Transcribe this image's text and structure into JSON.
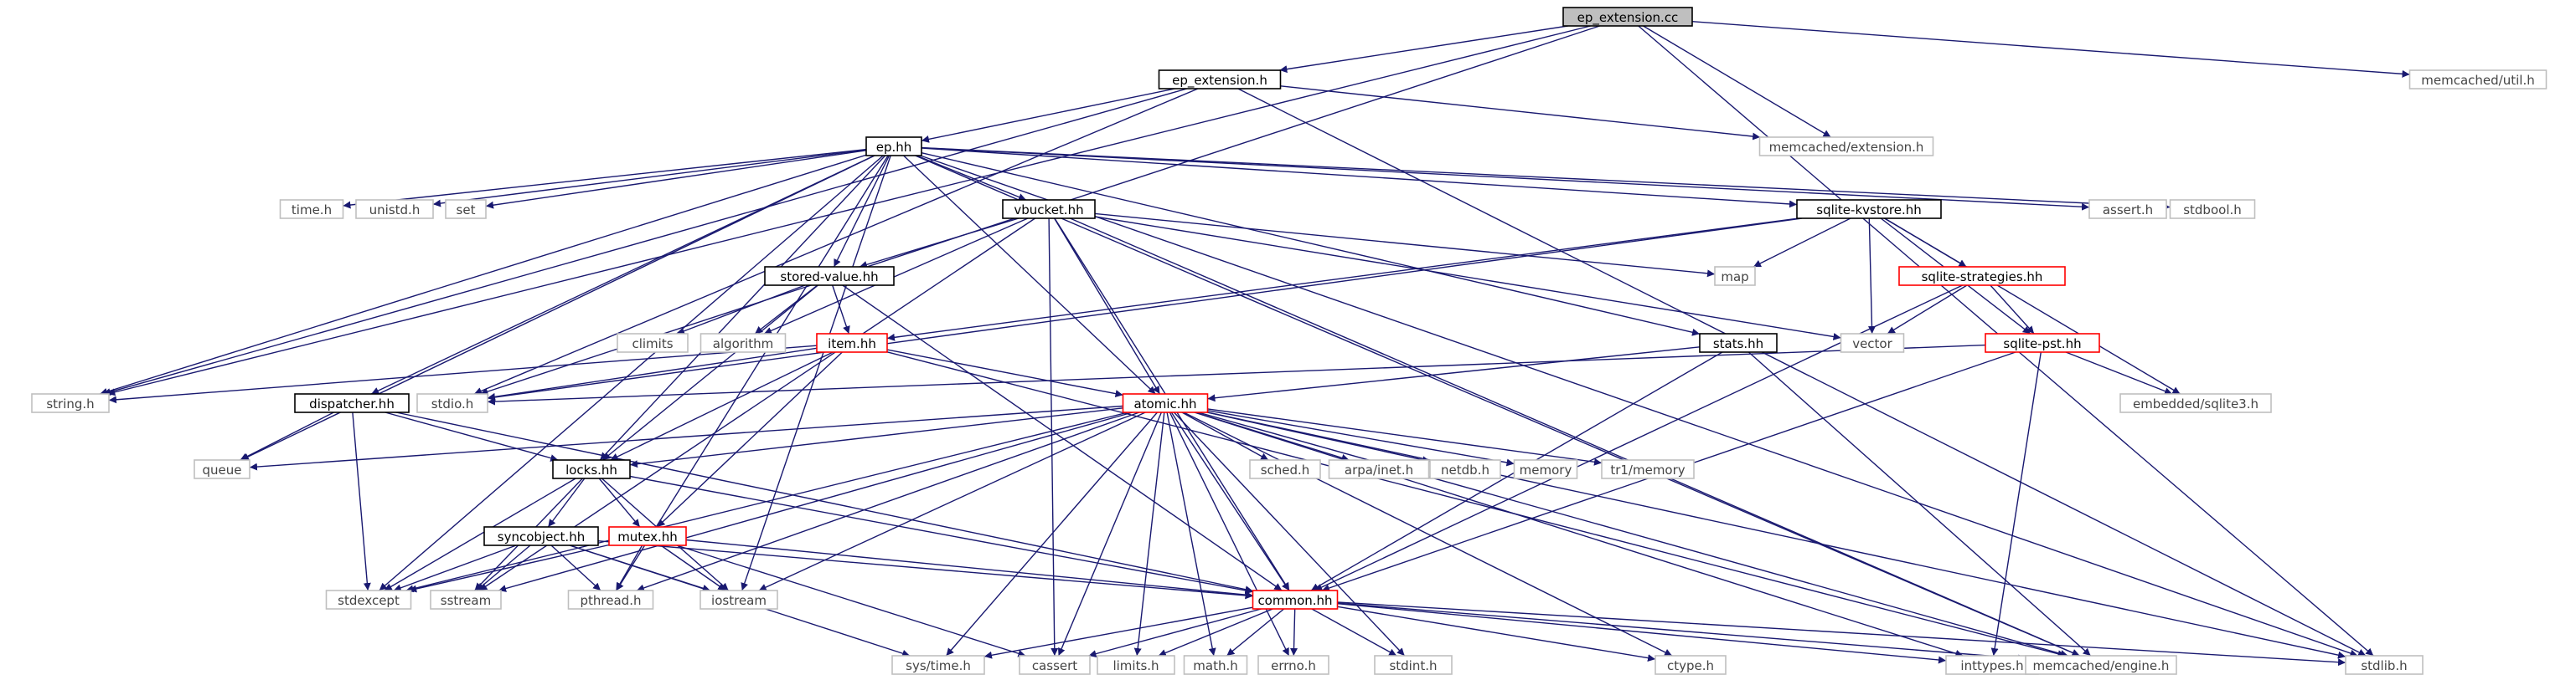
{
  "graph": {
    "title": "ep_extension.cc",
    "colors": {
      "edge": "#191970",
      "root_fill": "#bfbfbf",
      "box_black": "#000000",
      "box_red": "#ff0000",
      "box_grey": "#bfbfbf",
      "text_black": "#000000",
      "text_grey": "#444444"
    },
    "nodes": [
      {
        "id": "ep_extension_cc",
        "label": "ep_extension.cc",
        "style": "root"
      },
      {
        "id": "ep_extension_h",
        "label": "ep_extension.h",
        "style": "black"
      },
      {
        "id": "memcached_util_h",
        "label": "memcached/util.h",
        "style": "grey"
      },
      {
        "id": "memcached_extension_h",
        "label": "memcached/extension.h",
        "style": "grey"
      },
      {
        "id": "ep_hh",
        "label": "ep.hh",
        "style": "black"
      },
      {
        "id": "time_h",
        "label": "time.h",
        "style": "grey"
      },
      {
        "id": "unistd_h",
        "label": "unistd.h",
        "style": "grey"
      },
      {
        "id": "set",
        "label": "set",
        "style": "grey"
      },
      {
        "id": "vbucket_hh",
        "label": "vbucket.hh",
        "style": "black"
      },
      {
        "id": "sqlite_kvstore_hh",
        "label": "sqlite-kvstore.hh",
        "style": "black"
      },
      {
        "id": "assert_h",
        "label": "assert.h",
        "style": "grey"
      },
      {
        "id": "stdbool_h",
        "label": "stdbool.h",
        "style": "grey"
      },
      {
        "id": "stored_value_hh",
        "label": "stored-value.hh",
        "style": "black"
      },
      {
        "id": "map",
        "label": "map",
        "style": "grey"
      },
      {
        "id": "sqlite_strategies_hh",
        "label": "sqlite-strategies.hh",
        "style": "red"
      },
      {
        "id": "climits",
        "label": "climits",
        "style": "grey"
      },
      {
        "id": "algorithm",
        "label": "algorithm",
        "style": "grey"
      },
      {
        "id": "item_hh",
        "label": "item.hh",
        "style": "red"
      },
      {
        "id": "stats_hh",
        "label": "stats.hh",
        "style": "black"
      },
      {
        "id": "vector",
        "label": "vector",
        "style": "grey"
      },
      {
        "id": "sqlite_pst_hh",
        "label": "sqlite-pst.hh",
        "style": "red"
      },
      {
        "id": "string_h",
        "label": "string.h",
        "style": "grey"
      },
      {
        "id": "dispatcher_hh",
        "label": "dispatcher.hh",
        "style": "black"
      },
      {
        "id": "stdio_h",
        "label": "stdio.h",
        "style": "grey"
      },
      {
        "id": "atomic_hh",
        "label": "atomic.hh",
        "style": "red"
      },
      {
        "id": "embedded_sqlite3_h",
        "label": "embedded/sqlite3.h",
        "style": "grey"
      },
      {
        "id": "queue",
        "label": "queue",
        "style": "grey"
      },
      {
        "id": "locks_hh",
        "label": "locks.hh",
        "style": "black"
      },
      {
        "id": "sched_h",
        "label": "sched.h",
        "style": "grey"
      },
      {
        "id": "arpa_inet_h",
        "label": "arpa/inet.h",
        "style": "grey"
      },
      {
        "id": "netdb_h",
        "label": "netdb.h",
        "style": "grey"
      },
      {
        "id": "memory",
        "label": "memory",
        "style": "grey"
      },
      {
        "id": "tr1_memory",
        "label": "tr1/memory",
        "style": "grey"
      },
      {
        "id": "syncobject_hh",
        "label": "syncobject.hh",
        "style": "black"
      },
      {
        "id": "mutex_hh",
        "label": "mutex.hh",
        "style": "red"
      },
      {
        "id": "stdexcept",
        "label": "stdexcept",
        "style": "grey"
      },
      {
        "id": "sstream",
        "label": "sstream",
        "style": "grey"
      },
      {
        "id": "pthread_h",
        "label": "pthread.h",
        "style": "grey"
      },
      {
        "id": "iostream",
        "label": "iostream",
        "style": "grey"
      },
      {
        "id": "common_hh",
        "label": "common.hh",
        "style": "red"
      },
      {
        "id": "sys_time_h",
        "label": "sys/time.h",
        "style": "grey"
      },
      {
        "id": "cassert",
        "label": "cassert",
        "style": "grey"
      },
      {
        "id": "limits_h",
        "label": "limits.h",
        "style": "grey"
      },
      {
        "id": "math_h",
        "label": "math.h",
        "style": "grey"
      },
      {
        "id": "errno_h",
        "label": "errno.h",
        "style": "grey"
      },
      {
        "id": "stdint_h",
        "label": "stdint.h",
        "style": "grey"
      },
      {
        "id": "ctype_h",
        "label": "ctype.h",
        "style": "grey"
      },
      {
        "id": "inttypes_h",
        "label": "inttypes.h",
        "style": "grey"
      },
      {
        "id": "memcached_engine_h",
        "label": "memcached/engine.h",
        "style": "grey"
      },
      {
        "id": "stdlib_h",
        "label": "stdlib.h",
        "style": "grey"
      }
    ],
    "edges": [
      [
        "ep_extension_cc",
        "ep_extension_h"
      ],
      [
        "ep_extension_cc",
        "memcached_util_h"
      ],
      [
        "ep_extension_cc",
        "memcached_extension_h"
      ],
      [
        "ep_extension_cc",
        "string_h"
      ],
      [
        "ep_extension_cc",
        "stdio_h"
      ],
      [
        "ep_extension_cc",
        "stdlib_h"
      ],
      [
        "ep_extension_h",
        "ep_hh"
      ],
      [
        "ep_extension_h",
        "memcached_extension_h"
      ],
      [
        "ep_extension_h",
        "string_h"
      ],
      [
        "ep_extension_h",
        "stdio_h"
      ],
      [
        "ep_extension_h",
        "stdlib_h"
      ],
      [
        "ep_hh",
        "time_h"
      ],
      [
        "ep_hh",
        "unistd_h"
      ],
      [
        "ep_hh",
        "set"
      ],
      [
        "ep_hh",
        "vbucket_hh"
      ],
      [
        "ep_hh",
        "sqlite_kvstore_hh"
      ],
      [
        "ep_hh",
        "assert_h"
      ],
      [
        "ep_hh",
        "stdbool_h"
      ],
      [
        "ep_hh",
        "stored_value_hh"
      ],
      [
        "ep_hh",
        "stats_hh"
      ],
      [
        "ep_hh",
        "string_h"
      ],
      [
        "ep_hh",
        "dispatcher_hh"
      ],
      [
        "ep_hh",
        "queue"
      ],
      [
        "ep_hh",
        "locks_hh"
      ],
      [
        "ep_hh",
        "atomic_hh"
      ],
      [
        "ep_hh",
        "stdexcept"
      ],
      [
        "ep_hh",
        "iostream"
      ],
      [
        "ep_hh",
        "pthread_h"
      ],
      [
        "ep_hh",
        "stdlib_h"
      ],
      [
        "ep_hh",
        "memcached_engine_h"
      ],
      [
        "vbucket_hh",
        "stored_value_hh"
      ],
      [
        "vbucket_hh",
        "map"
      ],
      [
        "vbucket_hh",
        "vector"
      ],
      [
        "vbucket_hh",
        "algorithm"
      ],
      [
        "vbucket_hh",
        "atomic_hh"
      ],
      [
        "vbucket_hh",
        "sstream"
      ],
      [
        "vbucket_hh",
        "cassert"
      ],
      [
        "vbucket_hh",
        "common_hh"
      ],
      [
        "vbucket_hh",
        "memcached_engine_h"
      ],
      [
        "sqlite_kvstore_hh",
        "map"
      ],
      [
        "sqlite_kvstore_hh",
        "vector"
      ],
      [
        "sqlite_kvstore_hh",
        "sqlite_strategies_hh"
      ],
      [
        "sqlite_kvstore_hh",
        "sqlite_pst_hh"
      ],
      [
        "sqlite_kvstore_hh",
        "item_hh"
      ],
      [
        "sqlite_kvstore_hh",
        "embedded_sqlite3_h"
      ],
      [
        "sqlite_kvstore_hh",
        "stdio_h"
      ],
      [
        "sqlite_strategies_hh",
        "vector"
      ],
      [
        "sqlite_strategies_hh",
        "sqlite_pst_hh"
      ],
      [
        "sqlite_strategies_hh",
        "common_hh"
      ],
      [
        "sqlite_pst_hh",
        "embedded_sqlite3_h"
      ],
      [
        "sqlite_pst_hh",
        "stdio_h"
      ],
      [
        "sqlite_pst_hh",
        "common_hh"
      ],
      [
        "sqlite_pst_hh",
        "inttypes_h"
      ],
      [
        "stored_value_hh",
        "climits"
      ],
      [
        "stored_value_hh",
        "algorithm"
      ],
      [
        "stored_value_hh",
        "item_hh"
      ],
      [
        "stored_value_hh",
        "locks_hh"
      ],
      [
        "stored_value_hh",
        "common_hh"
      ],
      [
        "item_hh",
        "string_h"
      ],
      [
        "item_hh",
        "stdio_h"
      ],
      [
        "item_hh",
        "atomic_hh"
      ],
      [
        "item_hh",
        "locks_hh"
      ],
      [
        "item_hh",
        "mutex_hh"
      ],
      [
        "item_hh",
        "memcached_engine_h"
      ],
      [
        "stats_hh",
        "atomic_hh"
      ],
      [
        "stats_hh",
        "common_hh"
      ],
      [
        "stats_hh",
        "memcached_engine_h"
      ],
      [
        "dispatcher_hh",
        "queue"
      ],
      [
        "dispatcher_hh",
        "locks_hh"
      ],
      [
        "dispatcher_hh",
        "stdexcept"
      ],
      [
        "dispatcher_hh",
        "common_hh"
      ],
      [
        "atomic_hh",
        "queue"
      ],
      [
        "atomic_hh",
        "locks_hh"
      ],
      [
        "atomic_hh",
        "sched_h"
      ],
      [
        "atomic_hh",
        "arpa_inet_h"
      ],
      [
        "atomic_hh",
        "netdb_h"
      ],
      [
        "atomic_hh",
        "memory"
      ],
      [
        "atomic_hh",
        "tr1_memory"
      ],
      [
        "atomic_hh",
        "stdexcept"
      ],
      [
        "atomic_hh",
        "sstream"
      ],
      [
        "atomic_hh",
        "pthread_h"
      ],
      [
        "atomic_hh",
        "iostream"
      ],
      [
        "atomic_hh",
        "common_hh"
      ],
      [
        "atomic_hh",
        "sys_time_h"
      ],
      [
        "atomic_hh",
        "cassert"
      ],
      [
        "atomic_hh",
        "limits_h"
      ],
      [
        "atomic_hh",
        "math_h"
      ],
      [
        "atomic_hh",
        "errno_h"
      ],
      [
        "atomic_hh",
        "stdint_h"
      ],
      [
        "atomic_hh",
        "ctype_h"
      ],
      [
        "atomic_hh",
        "inttypes_h"
      ],
      [
        "atomic_hh",
        "memcached_engine_h"
      ],
      [
        "atomic_hh",
        "stdlib_h"
      ],
      [
        "locks_hh",
        "syncobject_hh"
      ],
      [
        "locks_hh",
        "mutex_hh"
      ],
      [
        "locks_hh",
        "stdexcept"
      ],
      [
        "locks_hh",
        "sstream"
      ],
      [
        "locks_hh",
        "iostream"
      ],
      [
        "locks_hh",
        "common_hh"
      ],
      [
        "syncobject_hh",
        "stdexcept"
      ],
      [
        "syncobject_hh",
        "sstream"
      ],
      [
        "syncobject_hh",
        "pthread_h"
      ],
      [
        "syncobject_hh",
        "iostream"
      ],
      [
        "syncobject_hh",
        "common_hh"
      ],
      [
        "syncobject_hh",
        "sys_time_h"
      ],
      [
        "mutex_hh",
        "stdexcept"
      ],
      [
        "mutex_hh",
        "pthread_h"
      ],
      [
        "mutex_hh",
        "iostream"
      ],
      [
        "mutex_hh",
        "common_hh"
      ],
      [
        "mutex_hh",
        "cassert"
      ],
      [
        "common_hh",
        "sys_time_h"
      ],
      [
        "common_hh",
        "cassert"
      ],
      [
        "common_hh",
        "limits_h"
      ],
      [
        "common_hh",
        "math_h"
      ],
      [
        "common_hh",
        "errno_h"
      ],
      [
        "common_hh",
        "stdint_h"
      ],
      [
        "common_hh",
        "ctype_h"
      ],
      [
        "common_hh",
        "inttypes_h"
      ],
      [
        "common_hh",
        "memcached_engine_h"
      ],
      [
        "common_hh",
        "stdlib_h"
      ]
    ]
  }
}
